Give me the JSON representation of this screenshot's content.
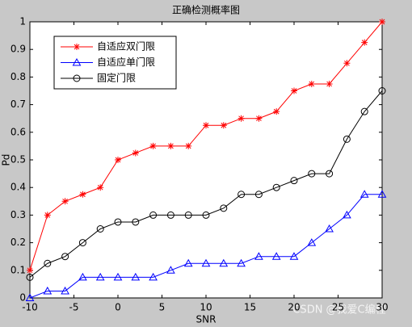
{
  "chart_data": {
    "type": "line",
    "title": "正确检测概率图",
    "x_label": "SNR",
    "y_label": "Pd",
    "x": [
      -10,
      -8,
      -6,
      -4,
      -2,
      0,
      2,
      4,
      6,
      8,
      10,
      12,
      14,
      16,
      18,
      20,
      22,
      24,
      26,
      28,
      30
    ],
    "series": [
      {
        "name": "自适应双门限",
        "color": "#ff0000",
        "marker": "star",
        "values": [
          0.1,
          0.3,
          0.35,
          0.375,
          0.4,
          0.5,
          0.525,
          0.55,
          0.55,
          0.55,
          0.625,
          0.625,
          0.65,
          0.65,
          0.675,
          0.75,
          0.775,
          0.775,
          0.85,
          0.925,
          1.0
        ]
      },
      {
        "name": "自适应单门限",
        "color": "#0000ff",
        "marker": "triangle",
        "values": [
          0,
          0.025,
          0.025,
          0.075,
          0.075,
          0.075,
          0.075,
          0.075,
          0.1,
          0.125,
          0.125,
          0.125,
          0.125,
          0.15,
          0.15,
          0.15,
          0.2,
          0.25,
          0.3,
          0.375,
          0.375
        ]
      },
      {
        "name": "固定门限",
        "color": "#000000",
        "marker": "circle",
        "values": [
          0.075,
          0.125,
          0.15,
          0.2,
          0.25,
          0.275,
          0.275,
          0.3,
          0.3,
          0.3,
          0.3,
          0.325,
          0.375,
          0.375,
          0.4,
          0.425,
          0.45,
          0.45,
          0.575,
          0.675,
          0.75
        ]
      }
    ],
    "xlim": [
      -10,
      30
    ],
    "xticks": [
      -10,
      -5,
      0,
      5,
      10,
      15,
      20,
      25,
      30
    ],
    "ylim": [
      0,
      1
    ],
    "yticks": [
      0,
      0.1,
      0.2,
      0.3,
      0.4,
      0.5,
      0.6,
      0.7,
      0.8,
      0.9,
      1
    ],
    "grid": false,
    "legend": "upper left",
    "watermark": "CSDN @我爱C编程"
  }
}
